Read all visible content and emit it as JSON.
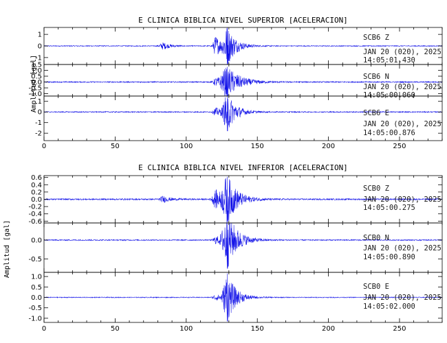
{
  "chart_data": [
    {
      "type": "line",
      "title": "E CLINICA BIBLICA NIVEL SUPERIOR [ACELERACION]",
      "ylabel": "Amplitud [gal]",
      "xlim": [
        0,
        280
      ],
      "xticks": [
        0,
        50,
        100,
        150,
        200,
        250
      ],
      "series": [
        {
          "name": "SCB6 Z",
          "station": "SCB6",
          "component": "Z",
          "date": "JAN 20 (020), 2025",
          "time": "14:05:01.430",
          "ylim": [
            -1.6,
            1.6
          ],
          "yticks": [
            -1,
            0,
            1
          ],
          "yticklabels": [
            "-1",
            "0",
            "1"
          ],
          "envelope": {
            "noise": 0.04,
            "peak_x": 129,
            "peak_amplitude": 1.6,
            "bursts": [
              {
                "x": 84,
                "w": 5,
                "a": 0.3
              },
              {
                "x": 121,
                "w": 4,
                "a": 0.9
              },
              {
                "x": 129,
                "w": 6,
                "a": 1.6
              }
            ]
          }
        },
        {
          "name": "SCB6 N",
          "station": "SCB6",
          "component": "N",
          "date": "JAN 20 (020), 2025",
          "time": "14:05:00.060",
          "ylim": [
            -1.2,
            1.5
          ],
          "yticks": [
            1.5,
            1.0,
            0.5,
            0.0,
            -0.5,
            -1.0
          ],
          "yticklabels": [
            "1.5",
            "1.0",
            "0.5",
            "0.0",
            "-0.5",
            "-1.0"
          ],
          "envelope": {
            "noise": 0.05,
            "peak_x": 129,
            "peak_amplitude": 1.3,
            "bursts": [
              {
                "x": 121,
                "w": 4,
                "a": 0.3
              },
              {
                "x": 129,
                "w": 9,
                "a": 1.3
              }
            ]
          }
        },
        {
          "name": "SCB6 E",
          "station": "SCB6",
          "component": "E",
          "date": "JAN 20 (020), 2025",
          "time": "14:05:00.876",
          "ylim": [
            -2.7,
            1.5
          ],
          "yticks": [
            1,
            0,
            -1,
            -2
          ],
          "yticklabels": [
            "1",
            "0",
            "-1",
            "-2"
          ],
          "envelope": {
            "noise": 0.05,
            "peak_x": 129,
            "peak_amplitude": 1.8,
            "bursts": [
              {
                "x": 121,
                "w": 4,
                "a": 0.4
              },
              {
                "x": 129,
                "w": 6,
                "a": 1.8
              }
            ]
          }
        }
      ]
    },
    {
      "type": "line",
      "title": "E CLINICA BIBLICA NIVEL INFERIOR [ACELERACION]",
      "ylabel": "Amplitud [gal]",
      "xlim": [
        0,
        280
      ],
      "xticks": [
        0,
        50,
        100,
        150,
        200,
        250
      ],
      "series": [
        {
          "name": "SCB0 Z",
          "station": "SCB0",
          "component": "Z",
          "date": "JAN 20 (020), 2025",
          "time": "14:05:00.275",
          "ylim": [
            -0.65,
            0.65
          ],
          "yticks": [
            0.6,
            0.4,
            0.2,
            0.0,
            -0.2,
            -0.4,
            -0.6
          ],
          "yticklabels": [
            "0.6",
            "0.4",
            "0.2",
            "0.0",
            "-0.2",
            "-0.4",
            "-0.6"
          ],
          "envelope": {
            "noise": 0.02,
            "peak_x": 129,
            "peak_amplitude": 0.62,
            "bursts": [
              {
                "x": 84,
                "w": 5,
                "a": 0.08
              },
              {
                "x": 121,
                "w": 5,
                "a": 0.25
              },
              {
                "x": 129,
                "w": 7,
                "a": 0.62
              }
            ]
          }
        },
        {
          "name": "SCB0 N",
          "station": "SCB0",
          "component": "N",
          "date": "JAN 20 (020), 2025",
          "time": "14:05:00.890",
          "ylim": [
            -0.85,
            0.45
          ],
          "yticks": [
            0.0,
            -0.5
          ],
          "yticklabels": [
            "0.0",
            "-0.5"
          ],
          "envelope": {
            "noise": 0.015,
            "peak_x": 129,
            "peak_amplitude": 0.75,
            "bursts": [
              {
                "x": 121,
                "w": 4,
                "a": 0.1
              },
              {
                "x": 129,
                "w": 7,
                "a": 0.75
              }
            ]
          }
        },
        {
          "name": "SCB0 E",
          "station": "SCB0",
          "component": "E",
          "date": "JAN 20 (020), 2025",
          "time": "14:05:02.000",
          "ylim": [
            -1.2,
            1.2
          ],
          "yticks": [
            1.0,
            0.5,
            0.0,
            -0.5,
            -1.0
          ],
          "yticklabels": [
            "1.0",
            "0.5",
            "0.0",
            "-0.5",
            "-1.0"
          ],
          "envelope": {
            "noise": 0.02,
            "peak_x": 129,
            "peak_amplitude": 1.15,
            "bursts": [
              {
                "x": 121,
                "w": 4,
                "a": 0.15
              },
              {
                "x": 129,
                "w": 6,
                "a": 1.15
              }
            ]
          }
        }
      ]
    }
  ],
  "colors": {
    "trace": "#1010e8",
    "frame": "#000000",
    "background": "#ffffff"
  }
}
